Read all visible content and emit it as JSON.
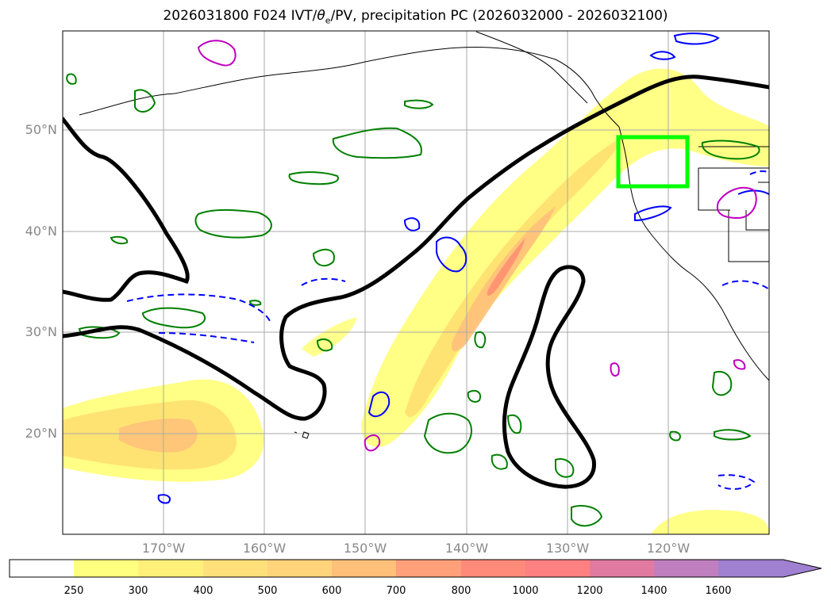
{
  "title": "2026031800 F024 IVT/θe/PV, precipitation PC (2026032000 - 2026032100)",
  "title_parts": {
    "pre": "2026031800 F024 IVT/",
    "theta": "θ",
    "sub": "e",
    "post": "/PV, precipitation PC (2026032000 - 2026032100)"
  },
  "map": {
    "lon_range": [
      -180,
      -110
    ],
    "lat_range": [
      10,
      60
    ],
    "lat_labels": [
      "50°N",
      "40°N",
      "30°N",
      "20°N"
    ],
    "lon_labels": [
      "170°W",
      "160°W",
      "150°W",
      "140°W",
      "130°W",
      "120°W"
    ],
    "highlight_box_color": "#00ff00",
    "ivt_fill_colors": [
      "#ffff80",
      "#ffee70",
      "#ffe070",
      "#ffd070",
      "#ffb070",
      "#ff9070"
    ],
    "pv_contour_color": "#000000",
    "theta_e_colors": {
      "positive": "#008000",
      "negative": "#0000ff",
      "high": "#c000c0"
    }
  },
  "colorbar": {
    "levels": [
      "250",
      "300",
      "400",
      "500",
      "600",
      "700",
      "800",
      "1000",
      "1200",
      "1400",
      "1600"
    ],
    "colors": [
      "#ffffff",
      "#ffff80",
      "#fff07a",
      "#ffe07a",
      "#ffd47a",
      "#ffc07a",
      "#ffa07a",
      "#ff8a7a",
      "#ff8080",
      "#e07aa0",
      "#c080c0",
      "#a080d0"
    ],
    "extend": "max"
  }
}
